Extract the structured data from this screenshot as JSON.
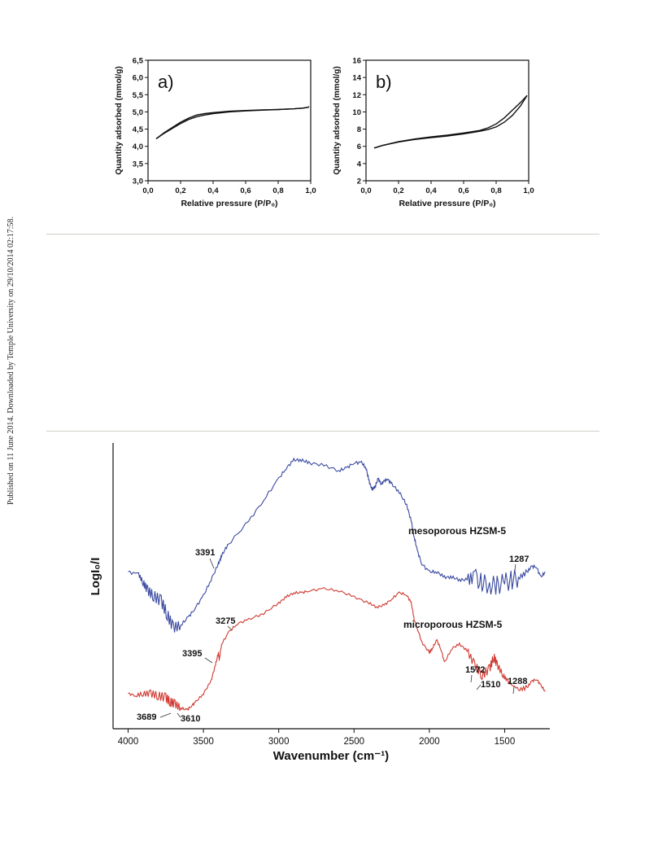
{
  "side_note": "Published on 11 June 2014. Downloaded by Temple University on 29/10/2014 02:17:58.",
  "chart_data": [
    {
      "type": "line",
      "panel_label": "a)",
      "xlabel": "Relative pressure (P/P₀)",
      "ylabel": "Quantity adsorbed (mmol/g)",
      "xlim": [
        0,
        1.0
      ],
      "ylim": [
        3.0,
        6.5
      ],
      "xticks": [
        "0,0",
        "0,2",
        "0,4",
        "0,6",
        "0,8",
        "1,0"
      ],
      "yticks": [
        "3,0",
        "3,5",
        "4,0",
        "4,5",
        "5,0",
        "5,5",
        "6,0",
        "6,5"
      ],
      "series": [
        {
          "x": [
            0.05,
            0.1,
            0.15,
            0.2,
            0.25,
            0.3,
            0.35,
            0.4,
            0.5,
            0.6,
            0.7,
            0.8,
            0.9,
            0.95,
            0.98,
            0.99
          ],
          "y": [
            4.22,
            4.38,
            4.52,
            4.66,
            4.78,
            4.86,
            4.91,
            4.95,
            5.0,
            5.03,
            5.05,
            5.07,
            5.09,
            5.11,
            5.13,
            5.15
          ]
        },
        {
          "x": [
            0.99,
            0.98,
            0.95,
            0.9,
            0.8,
            0.7,
            0.6,
            0.5,
            0.4,
            0.35,
            0.3,
            0.25,
            0.2,
            0.15,
            0.1,
            0.05
          ],
          "y": [
            5.15,
            5.13,
            5.11,
            5.09,
            5.07,
            5.06,
            5.04,
            5.02,
            4.98,
            4.95,
            4.91,
            4.82,
            4.7,
            4.55,
            4.4,
            4.22
          ]
        }
      ]
    },
    {
      "type": "line",
      "panel_label": "b)",
      "xlabel": "Relative pressure (P/P₀)",
      "ylabel": "Quantity adsorbed (mmol/g)",
      "xlim": [
        0,
        1.0
      ],
      "ylim": [
        2,
        16
      ],
      "xticks": [
        "0,0",
        "0,2",
        "0,4",
        "0,6",
        "0,8",
        "1,0"
      ],
      "yticks": [
        "2",
        "4",
        "6",
        "8",
        "10",
        "12",
        "14",
        "16"
      ],
      "series": [
        {
          "x": [
            0.05,
            0.1,
            0.2,
            0.3,
            0.4,
            0.5,
            0.6,
            0.7,
            0.75,
            0.8,
            0.85,
            0.9,
            0.95,
            0.99
          ],
          "y": [
            5.8,
            6.1,
            6.5,
            6.8,
            7.0,
            7.2,
            7.45,
            7.75,
            7.95,
            8.25,
            8.8,
            9.6,
            10.7,
            11.9
          ]
        },
        {
          "x": [
            0.99,
            0.95,
            0.9,
            0.85,
            0.8,
            0.75,
            0.7,
            0.6,
            0.5,
            0.4,
            0.3,
            0.2,
            0.1,
            0.05
          ],
          "y": [
            11.9,
            11.1,
            10.2,
            9.3,
            8.6,
            8.15,
            7.85,
            7.55,
            7.3,
            7.1,
            6.85,
            6.55,
            6.1,
            5.8
          ]
        }
      ]
    },
    {
      "type": "line",
      "xlabel": "Wavenumber (cm⁻¹)",
      "ylabel": "LogI₀/I",
      "xlim": [
        4100,
        1200
      ],
      "ylim": [
        0,
        100
      ],
      "xticks": [
        "4000",
        "3500",
        "3000",
        "2500",
        "2000",
        "1500"
      ],
      "series": [
        {
          "name": "mesoporous HZSM-5",
          "color": "#3a4aa0",
          "x": [
            4000,
            3930,
            3900,
            3870,
            3830,
            3780,
            3740,
            3700,
            3650,
            3600,
            3560,
            3500,
            3450,
            3400,
            3380,
            3340,
            3200,
            3100,
            3000,
            2950,
            2900,
            2850,
            2800,
            2700,
            2600,
            2550,
            2500,
            2450,
            2420,
            2400,
            2380,
            2360,
            2340,
            2320,
            2300,
            2280,
            2250,
            2200,
            2150,
            2120,
            2100,
            2080,
            2050,
            2000,
            1950,
            1900,
            1850,
            1800,
            1750,
            1700,
            1650,
            1600,
            1550,
            1500,
            1450,
            1400,
            1350,
            1320,
            1290,
            1260,
            1230
          ],
          "y": [
            47,
            46,
            43,
            40,
            38,
            36,
            31,
            26,
            27,
            30,
            33,
            38,
            44,
            50,
            53,
            57,
            66,
            74,
            82,
            86,
            89,
            89,
            88,
            87,
            85,
            86,
            88,
            88,
            86,
            81,
            78,
            79,
            82,
            80,
            81,
            82,
            80,
            77,
            72,
            66,
            60,
            55,
            50,
            47,
            47,
            45,
            45,
            44,
            44,
            45,
            43,
            42,
            42,
            43,
            44,
            45,
            47,
            49,
            49,
            45,
            47
          ]
        },
        {
          "name": "microporous HZSM-5",
          "color": "#d03a32",
          "x": [
            4000,
            3950,
            3900,
            3850,
            3800,
            3750,
            3720,
            3689,
            3650,
            3610,
            3580,
            3550,
            3500,
            3450,
            3420,
            3400,
            3395,
            3380,
            3330,
            3275,
            3200,
            3100,
            3000,
            2950,
            2900,
            2850,
            2800,
            2700,
            2600,
            2500,
            2400,
            2350,
            2300,
            2250,
            2200,
            2150,
            2120,
            2100,
            2050,
            2000,
            1980,
            1950,
            1920,
            1900,
            1850,
            1800,
            1750,
            1700,
            1650,
            1600,
            1572,
            1550,
            1510,
            1480,
            1450,
            1400,
            1350,
            1320,
            1288,
            1260,
            1230
          ],
          "y": [
            6,
            5,
            6,
            6,
            5,
            4,
            2,
            1,
            -1,
            -2,
            0,
            2,
            6,
            12,
            20,
            26,
            22,
            30,
            36,
            40,
            42,
            45,
            50,
            53,
            55,
            55,
            56,
            57,
            56,
            53,
            50,
            48,
            49,
            52,
            55,
            54,
            50,
            42,
            31,
            26,
            28,
            32,
            27,
            21,
            28,
            30,
            27,
            20,
            15,
            18,
            24,
            20,
            15,
            12,
            10,
            8,
            9,
            12,
            13,
            10,
            7
          ]
        }
      ],
      "annotations": [
        "3391",
        "3275",
        "3395",
        "3689",
        "3610",
        "1572",
        "1510",
        "1288",
        "1287"
      ]
    }
  ]
}
